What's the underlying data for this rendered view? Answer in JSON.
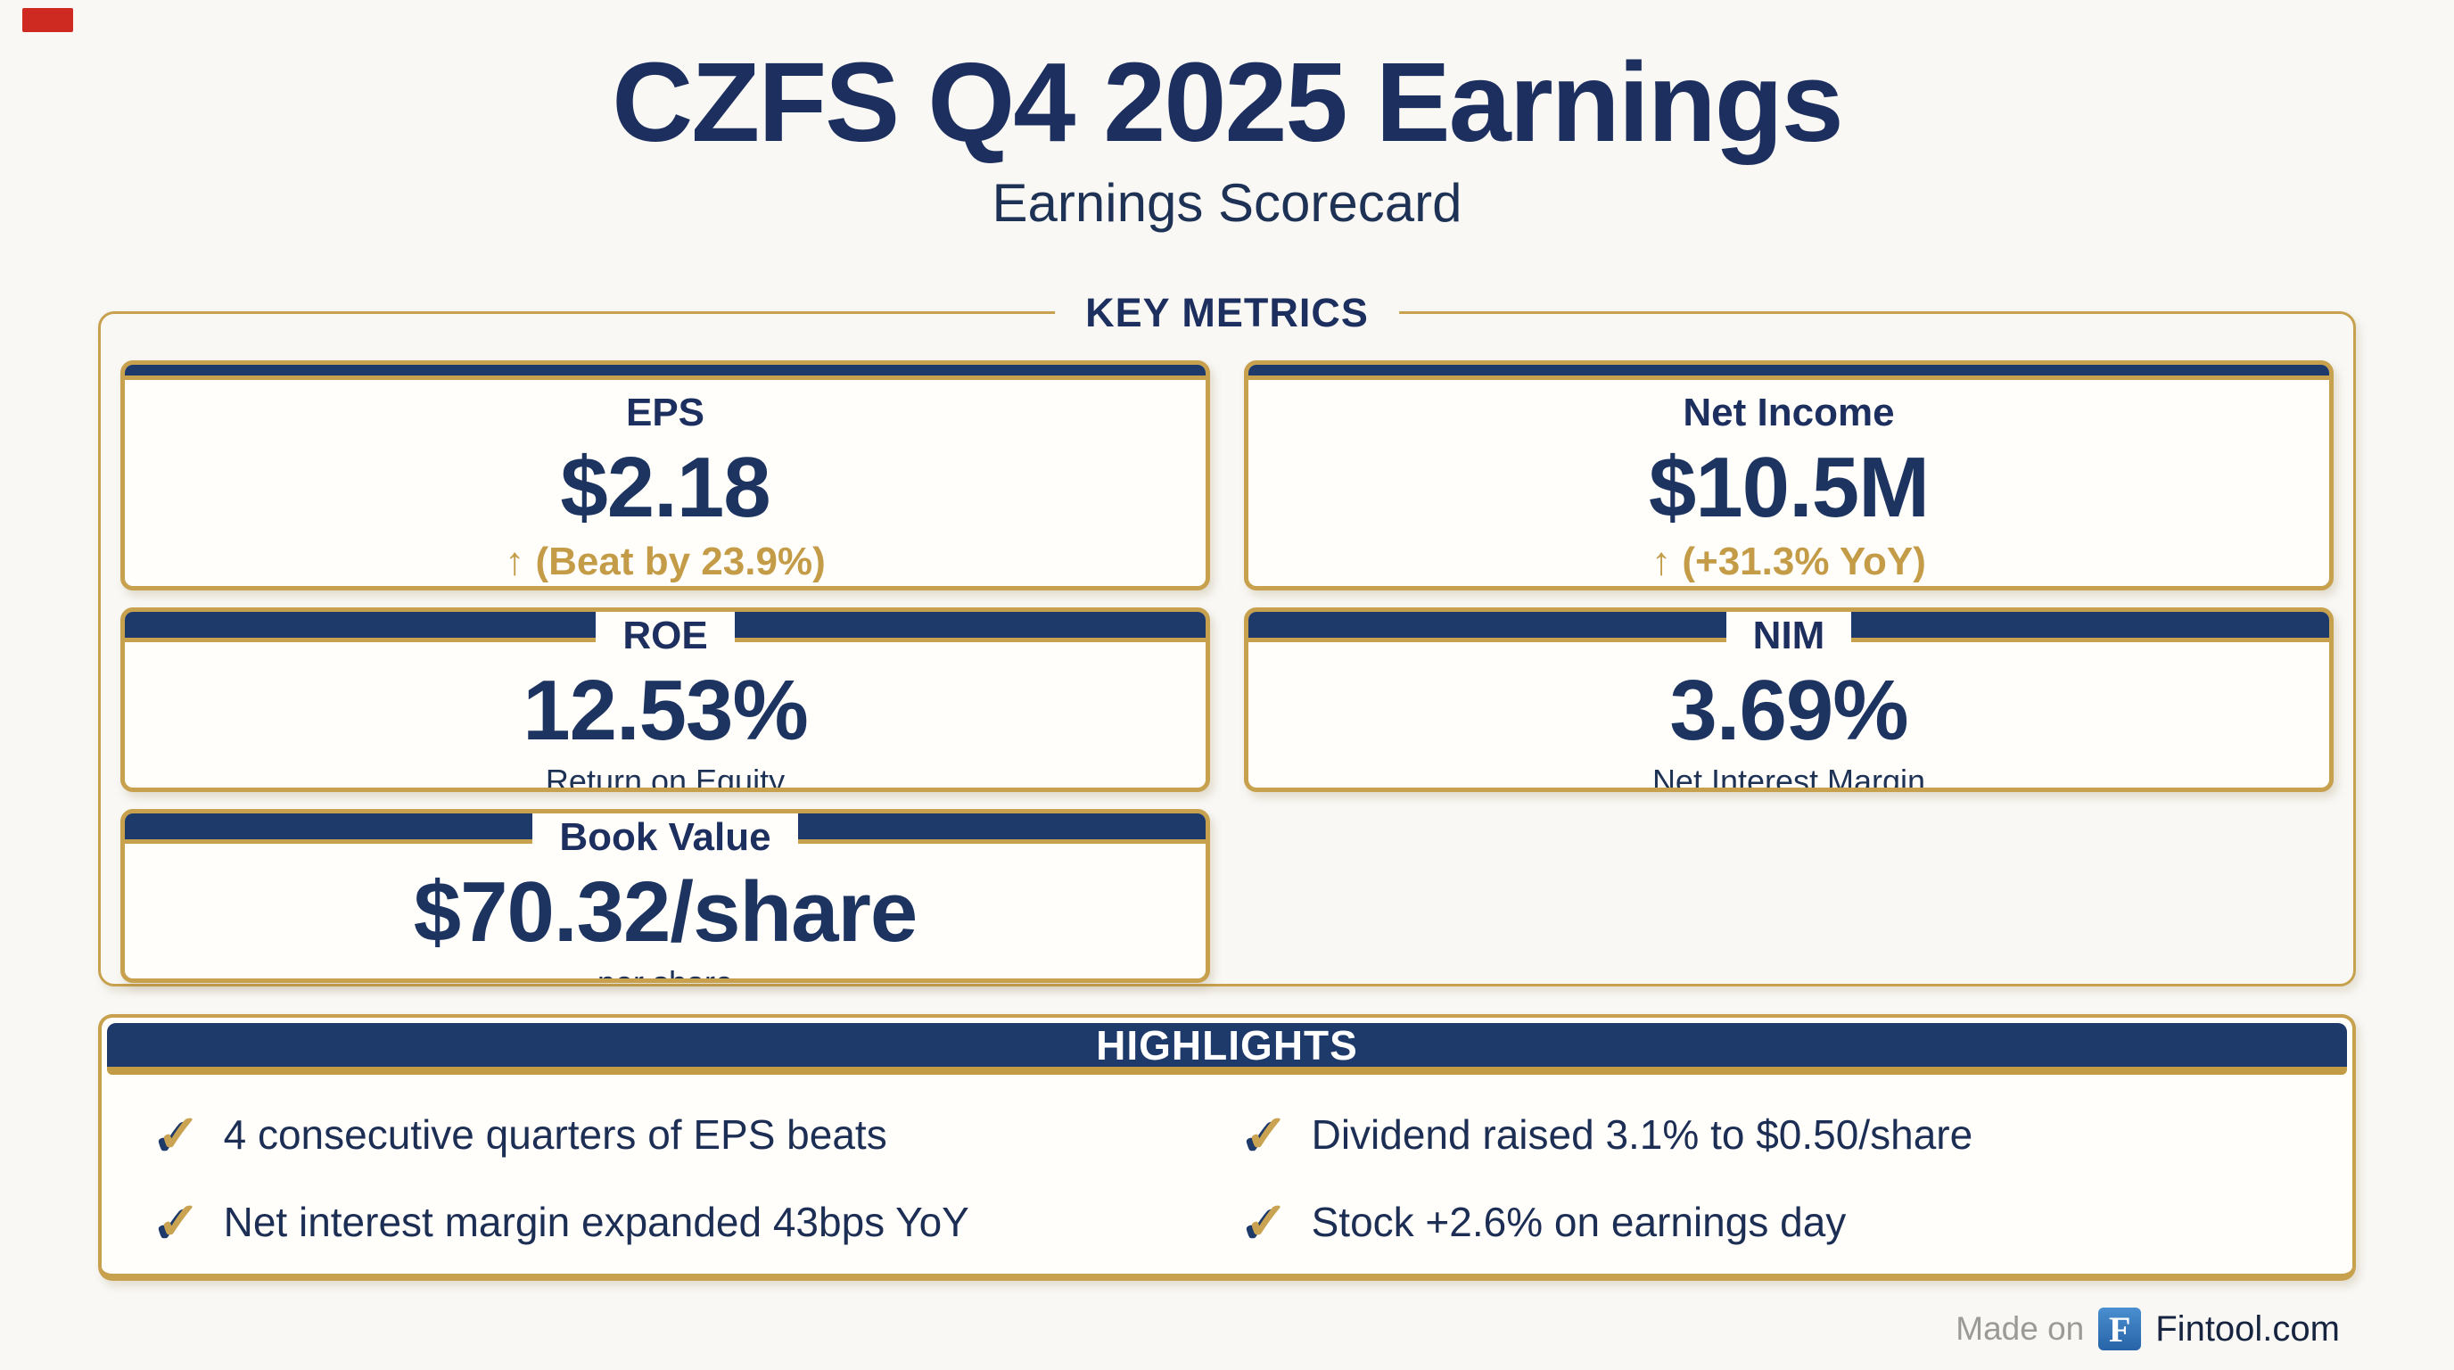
{
  "page": {
    "background": "#f9f8f5"
  },
  "colors": {
    "navy": "#1e3a6a",
    "navy_text": "#1d2f5e",
    "gold_border": "#c7a14e",
    "gold_text": "#c49c48",
    "card_background": "#fffefb",
    "red_mark": "#ce2a22",
    "fintool_blue": "#2e73b8",
    "footer_gray": "#9a9a97"
  },
  "header": {
    "title": "CZFS Q4 2025 Earnings",
    "subtitle": "Earnings Scorecard"
  },
  "metrics": {
    "section_label": "KEY METRICS",
    "cards": [
      {
        "id": "eps",
        "title": "EPS",
        "value": "$2.18",
        "sub": "↑ (Beat by 23.9%)",
        "sub_style": "gold",
        "header_style": "full"
      },
      {
        "id": "net-income",
        "title": "Net Income",
        "value": "$10.5M",
        "sub": "↑ (+31.3% YoY)",
        "sub_style": "gold",
        "header_style": "full"
      },
      {
        "id": "roe",
        "title": "ROE",
        "value": "12.53%",
        "sub": "Return on Equity",
        "sub_style": "navy",
        "header_style": "split"
      },
      {
        "id": "nim",
        "title": "NIM",
        "value": "3.69%",
        "sub": "Net Interest Margin",
        "sub_style": "navy",
        "header_style": "split"
      },
      {
        "id": "book-value",
        "title": "Book Value",
        "value": "$70.32/share",
        "sub": "per share",
        "sub_style": "navy",
        "header_style": "split"
      }
    ]
  },
  "highlights": {
    "section_label": "HIGHLIGHTS",
    "check_icon": "✓",
    "items": [
      "4 consecutive quarters of EPS beats",
      "Dividend raised 3.1% to $0.50/share",
      "Net interest margin expanded 43bps YoY",
      "Stock +2.6% on earnings day"
    ]
  },
  "footer": {
    "made_on": "Made on",
    "logo_letter": "F",
    "site": "Fintool.com"
  }
}
